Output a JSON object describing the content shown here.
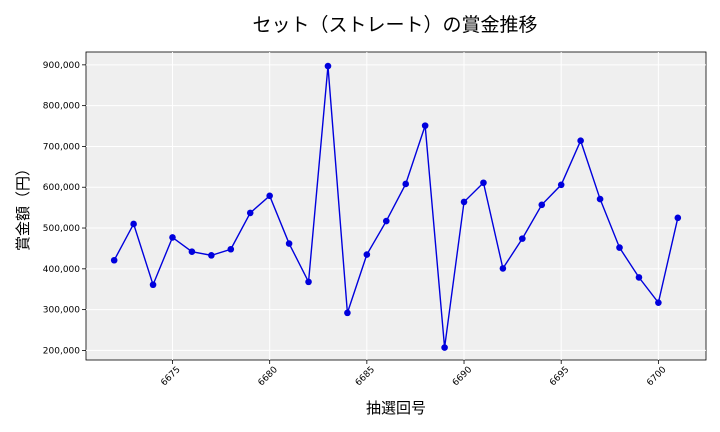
{
  "chart_data": {
    "type": "line",
    "title": "セット（ストレート）の賞金推移",
    "xlabel": "抽選回号",
    "ylabel": "賞金額（円）",
    "x": [
      6672,
      6673,
      6674,
      6675,
      6676,
      6677,
      6678,
      6679,
      6680,
      6681,
      6682,
      6683,
      6684,
      6685,
      6686,
      6687,
      6688,
      6689,
      6690,
      6691,
      6692,
      6693,
      6694,
      6695,
      6696,
      6697,
      6698,
      6699,
      6700,
      6701
    ],
    "series": [
      {
        "values": [
          421000,
          510000,
          361000,
          477000,
          442000,
          433000,
          448000,
          537000,
          579000,
          462000,
          368000,
          897000,
          292000,
          435000,
          517000,
          608000,
          751000,
          207000,
          564000,
          611000,
          401000,
          474000,
          557000,
          606000,
          714000,
          571000,
          452000,
          379000,
          317000,
          525000
        ],
        "color": "#0000dd"
      }
    ],
    "xticks": [
      "6675",
      "6680",
      "6685",
      "6690",
      "6695",
      "6700"
    ],
    "yticks": [
      "200,000",
      "300,000",
      "400,000",
      "500,000",
      "600,000",
      "700,000",
      "800,000",
      "900,000"
    ],
    "xlim": [
      6670.55,
      6702.45
    ],
    "ylim": [
      176500,
      931500
    ],
    "grid": true,
    "background": "#efefef",
    "grid_color": "#ffffff"
  }
}
